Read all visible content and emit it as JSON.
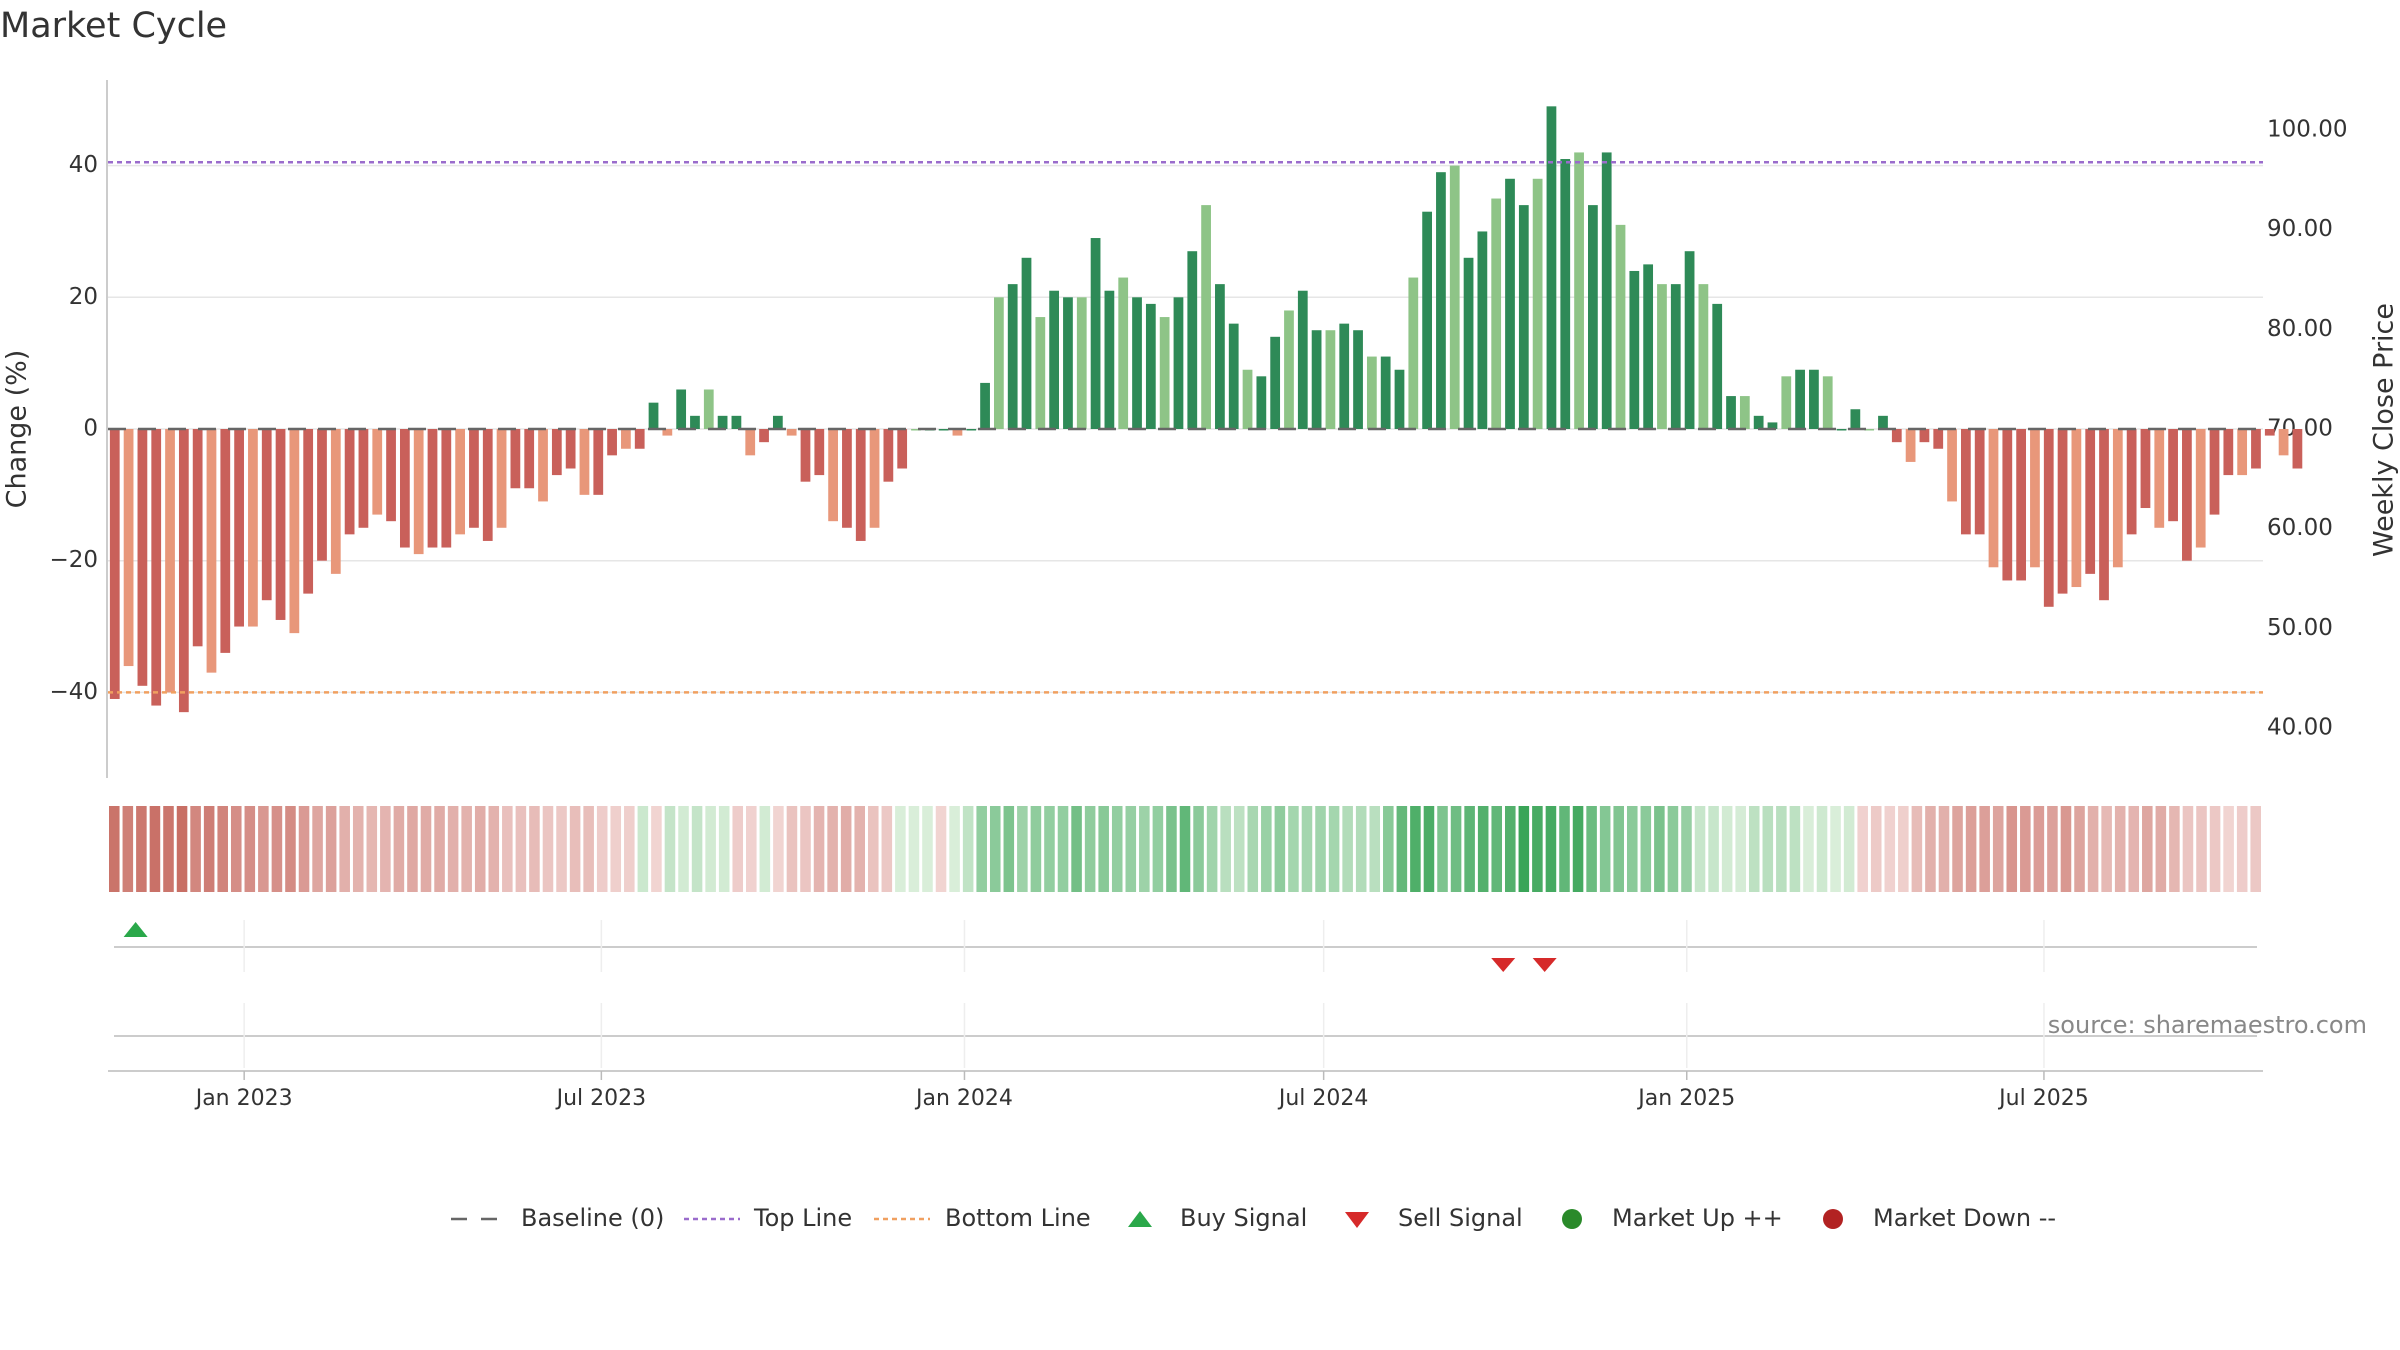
{
  "chart_data": {
    "type": "bar",
    "title": "Market Cycle",
    "ylabel_left": "Change (%)",
    "ylabel_right": "Weekly Close Price",
    "ylim_left": [
      -53,
      53
    ],
    "ylim_right": [
      35.0,
      105.0
    ],
    "yticks_left": [
      40,
      20,
      0,
      -20,
      -40
    ],
    "ytick_labels_left": [
      "40",
      "20",
      "0",
      "−20",
      "−40"
    ],
    "yticks_right": [
      100.0,
      90.0,
      80.0,
      70.0,
      60.0,
      50.0,
      40.0
    ],
    "ytick_labels_right": [
      "100.00",
      "90.00",
      "80.00",
      "70.00",
      "60.00",
      "50.00",
      "40.00"
    ],
    "x_start": "2022-10-24",
    "x_end": "2025-10-20",
    "x_ticks": [
      "2023-01-01",
      "2023-07-01",
      "2024-01-01",
      "2024-07-01",
      "2025-01-01",
      "2025-07-01"
    ],
    "x_tick_labels": [
      "Jan 2023",
      "Jul 2023",
      "Jan 2024",
      "Jul 2024",
      "Jan 2025",
      "Jul 2025"
    ],
    "top_line": 40.5,
    "bottom_line": -40,
    "baseline": 0,
    "series": [
      {
        "name": "Change (%)",
        "weeks_start": "2022-10-24",
        "values": [
          -41,
          -36,
          -39,
          -42,
          -40,
          -43,
          -33,
          -37,
          -34,
          -30,
          -30,
          -26,
          -29,
          -31,
          -25,
          -20,
          -22,
          -16,
          -15,
          -13,
          -14,
          -18,
          -19,
          -18,
          -18,
          -16,
          -15,
          -17,
          -15,
          -9,
          -9,
          -11,
          -7,
          -6,
          -10,
          -10,
          -4,
          -3,
          -3,
          4,
          -1,
          6,
          2,
          6,
          2,
          2,
          -4,
          -2,
          2,
          -1,
          -8,
          -7,
          -14,
          -15,
          -17,
          -15,
          -8,
          -6,
          0,
          0,
          0,
          -1,
          0,
          7,
          20,
          22,
          26,
          17,
          21,
          20,
          20,
          29,
          21,
          23,
          20,
          19,
          17,
          20,
          27,
          34,
          22,
          16,
          9,
          8,
          14,
          18,
          21,
          15,
          15,
          16,
          15,
          11,
          11,
          9,
          23,
          33,
          39,
          40,
          26,
          30,
          35,
          38,
          34,
          38,
          49,
          41,
          42,
          34,
          42,
          31,
          24,
          25,
          22,
          22,
          27,
          22,
          19,
          5,
          5,
          2,
          1,
          8,
          9,
          9,
          8,
          0,
          3,
          0,
          2,
          -2,
          -5,
          -2,
          -3,
          -11,
          -16,
          -16,
          -21,
          -23,
          -23,
          -21,
          -27,
          -25,
          -24,
          -22,
          -26,
          -21,
          -16,
          -12,
          -15,
          -14,
          -20,
          -18,
          -13,
          -7,
          -7,
          -6,
          -1,
          -4,
          -6
        ]
      }
    ],
    "heat_strip": {
      "description_free": true,
      "values": [
        -41,
        -36,
        -39,
        -42,
        -40,
        -43,
        -33,
        -37,
        -34,
        -30,
        -30,
        -26,
        -29,
        -31,
        -25,
        -20,
        -22,
        -16,
        -15,
        -13,
        -14,
        -18,
        -19,
        -18,
        -18,
        -16,
        -15,
        -17,
        -15,
        -9,
        -9,
        -11,
        -7,
        -6,
        -10,
        -10,
        -4,
        -3,
        -3,
        4,
        -1,
        6,
        2,
        6,
        2,
        2,
        -4,
        -2,
        2,
        -1,
        -8,
        -7,
        -14,
        -15,
        -17,
        -15,
        -8,
        -6,
        0,
        0,
        0,
        -1,
        0,
        7,
        20,
        22,
        26,
        17,
        21,
        20,
        20,
        29,
        21,
        23,
        20,
        19,
        17,
        20,
        27,
        34,
        22,
        16,
        9,
        8,
        14,
        18,
        21,
        15,
        15,
        16,
        15,
        11,
        11,
        9,
        23,
        33,
        39,
        40,
        26,
        30,
        35,
        38,
        34,
        38,
        49,
        41,
        42,
        34,
        42,
        31,
        24,
        25,
        22,
        22,
        27,
        22,
        19,
        5,
        5,
        2,
        1,
        8,
        9,
        9,
        8,
        0,
        3,
        0,
        2,
        -2,
        -5,
        -2,
        -3,
        -11,
        -16,
        -16,
        -21,
        -23,
        -23,
        -21,
        -27,
        -25,
        -24,
        -22,
        -26,
        -21,
        -16,
        -12,
        -15,
        -14,
        -20,
        -18,
        -13,
        -7,
        -7,
        -6,
        -1,
        -4,
        -6
      ]
    },
    "signals": {
      "buy": [
        "2022-11-07"
      ],
      "sell": [
        "2024-09-30",
        "2024-10-21"
      ]
    },
    "colors": {
      "down_dark": "#c9605a",
      "down_light": "#e8977a",
      "up_dark": "#2e8a57",
      "up_light": "#8ec487",
      "top_line": "#9a6ccc",
      "bottom_line": "#f0a060",
      "baseline": "#666666",
      "buy": "#2aa84a",
      "sell": "#d62a2a",
      "market_up": "#2a8a2a",
      "market_down": "#b22222",
      "grid": "#e6e6e6",
      "axis": "#cccccc"
    },
    "legend": {
      "placement": "bottom",
      "items": [
        {
          "label": "Baseline (0)",
          "marker": "dash"
        },
        {
          "label": "Top Line",
          "marker": "dot-purple"
        },
        {
          "label": "Bottom Line",
          "marker": "dot-orange"
        },
        {
          "label": "Buy Signal",
          "marker": "triangle-up"
        },
        {
          "label": "Sell Signal",
          "marker": "triangle-down"
        },
        {
          "label": "Market Up ++",
          "marker": "circle-green"
        },
        {
          "label": "Market Down --",
          "marker": "circle-red"
        }
      ]
    },
    "source": "source: sharemaestro.com"
  }
}
